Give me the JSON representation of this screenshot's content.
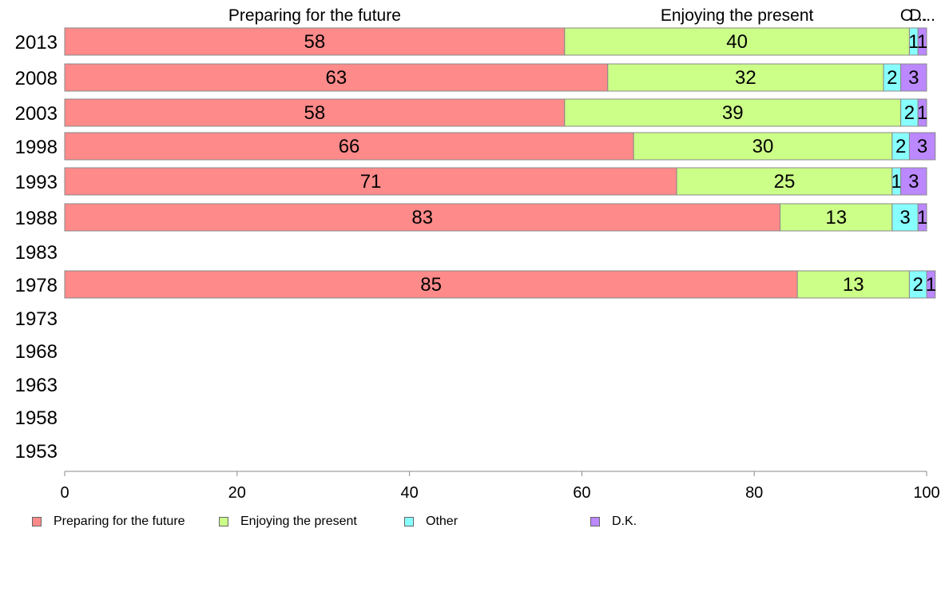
{
  "chart_data": {
    "type": "bar",
    "orientation": "horizontal",
    "stacked": true,
    "categories": [
      "2013",
      "2008",
      "2003",
      "1998",
      "1993",
      "1988",
      "1983",
      "1978",
      "1973",
      "1968",
      "1963",
      "1958",
      "1953"
    ],
    "series": [
      {
        "name": "Preparing for the future",
        "color": "#ff8a8a",
        "values": [
          58,
          63,
          58,
          66,
          71,
          83,
          null,
          85,
          null,
          null,
          null,
          null,
          null
        ]
      },
      {
        "name": "Enjoying the present",
        "color": "#ccff88",
        "values": [
          40,
          32,
          39,
          30,
          25,
          13,
          null,
          13,
          null,
          null,
          null,
          null,
          null
        ]
      },
      {
        "name": "Other",
        "color": "#88ffff",
        "values": [
          1,
          2,
          2,
          2,
          1,
          3,
          null,
          2,
          null,
          null,
          null,
          null,
          null
        ]
      },
      {
        "name": "D.K.",
        "color": "#bb88ff",
        "values": [
          1,
          3,
          1,
          3,
          3,
          1,
          null,
          1,
          null,
          null,
          null,
          null,
          null
        ]
      }
    ],
    "top_labels": [
      "Preparing for the future",
      "Enjoying the present",
      "O...",
      "D..."
    ],
    "x_ticks": [
      "0",
      "20",
      "40",
      "60",
      "80",
      "100"
    ],
    "xlim": [
      0,
      100
    ],
    "grid": false,
    "legend_position": "bottom-left"
  }
}
